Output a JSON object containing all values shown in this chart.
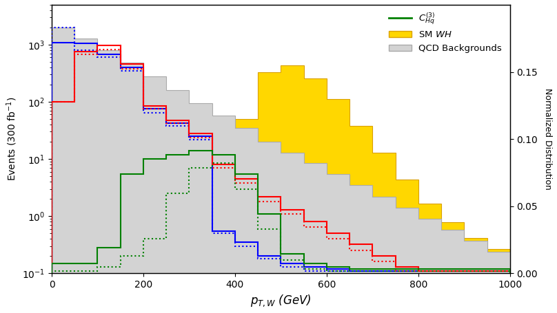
{
  "bin_edges": [
    0,
    50,
    100,
    150,
    200,
    250,
    300,
    350,
    400,
    450,
    500,
    550,
    600,
    650,
    700,
    750,
    800,
    850,
    900,
    950,
    1000
  ],
  "qcd_bg_events": [
    2000,
    1300,
    800,
    480,
    280,
    160,
    95,
    58,
    35,
    20,
    13,
    8.5,
    5.5,
    3.5,
    2.2,
    1.4,
    0.9,
    0.58,
    0.37,
    0.24
  ],
  "sm_wh_norm": [
    0.0,
    0.0,
    0.0,
    0.0,
    0.0,
    0.0,
    0.02,
    0.06,
    0.115,
    0.15,
    0.155,
    0.145,
    0.13,
    0.11,
    0.09,
    0.07,
    0.052,
    0.038,
    0.026,
    0.018
  ],
  "blue_solid_events": [
    1100,
    1050,
    680,
    400,
    75,
    42,
    25,
    0.55,
    0.35,
    0.2,
    0.15,
    0.13,
    0.12,
    0.11,
    0.11,
    0.11,
    0.11,
    0.11,
    0.11,
    0.11
  ],
  "blue_dotted_events": [
    2000,
    800,
    600,
    350,
    65,
    38,
    22,
    0.5,
    0.3,
    0.18,
    0.13,
    0.11,
    0.11,
    0.11,
    0.11,
    0.11,
    0.11,
    0.11,
    0.11,
    0.11
  ],
  "red_solid_events": [
    100,
    750,
    980,
    460,
    85,
    48,
    28,
    8,
    4.5,
    2.2,
    1.3,
    0.8,
    0.5,
    0.32,
    0.2,
    0.13,
    0.11,
    0.11,
    0.11,
    0.11
  ],
  "red_dotted_events": [
    100,
    680,
    820,
    380,
    75,
    42,
    24,
    7,
    3.8,
    1.8,
    1.1,
    0.65,
    0.4,
    0.25,
    0.16,
    0.11,
    0.11,
    0.11,
    0.11,
    0.11
  ],
  "green_solid_events": [
    0.15,
    0.15,
    0.28,
    5.5,
    10,
    12,
    14,
    12,
    5.5,
    1.1,
    0.22,
    0.15,
    0.13,
    0.12,
    0.12,
    0.12,
    0.12,
    0.12,
    0.12,
    0.12
  ],
  "green_dotted_events": [
    0.11,
    0.11,
    0.13,
    0.2,
    0.4,
    2.5,
    7,
    8.5,
    3.0,
    0.6,
    0.17,
    0.12,
    0.11,
    0.11,
    0.11,
    0.11,
    0.11,
    0.11,
    0.11,
    0.11
  ],
  "ylabel_left": "Events (300 fb$^{-1}$)",
  "ylabel_right": "Normalized Distribution",
  "xlabel": "$p_{T,W}$ (GeV)",
  "ylim_left": [
    0.1,
    5000
  ],
  "ylim_right": [
    0.0,
    0.2
  ],
  "xlim": [
    0,
    1000
  ],
  "color_blue": "#0000FF",
  "color_red": "#FF0000",
  "color_green": "#008000",
  "color_yellow": "#FFD700",
  "color_yellow_edge": "#DAA000",
  "color_gray": "#D3D3D3",
  "color_gray_edge": "#AAAAAA"
}
